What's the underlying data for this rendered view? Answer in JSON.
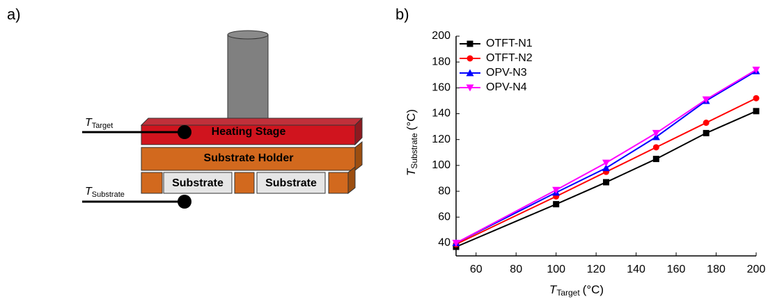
{
  "diagram": {
    "label": "a)",
    "heating_stage": "Heating Stage",
    "substrate_holder": "Substrate Holder",
    "substrates": [
      "Substrate",
      "Substrate"
    ],
    "sensors": [
      {
        "symbol": "T",
        "subscript": "Target"
      },
      {
        "symbol": "T",
        "subscript": "Substrate"
      }
    ]
  },
  "chart_data": {
    "type": "line",
    "panel_label": "b)",
    "x_label": {
      "symbol": "T",
      "subscript": "Target",
      "unit": "(°C)"
    },
    "y_label": {
      "symbol": "T",
      "subscript": "Substrate",
      "unit": "(°C)"
    },
    "x": [
      50,
      100,
      125,
      150,
      175,
      200
    ],
    "series": [
      {
        "name": "OTFT-N1",
        "color": "#000000",
        "marker": "square",
        "values": [
          37,
          70,
          87,
          105,
          125,
          142
        ]
      },
      {
        "name": "OTFT-N2",
        "color": "#ff0000",
        "marker": "circle",
        "values": [
          39,
          76,
          95,
          114,
          133,
          152
        ]
      },
      {
        "name": "OPV-N3",
        "color": "#0000ff",
        "marker": "triangle-up",
        "values": [
          40,
          79,
          98,
          122,
          150,
          173
        ]
      },
      {
        "name": "OPV-N4",
        "color": "#ff00ff",
        "marker": "triangle-down",
        "values": [
          40,
          81,
          102,
          125,
          151,
          174
        ]
      }
    ],
    "xlim": [
      50,
      200
    ],
    "xticks": [
      60,
      80,
      100,
      120,
      140,
      160,
      180,
      200
    ],
    "ylim": [
      30,
      200
    ],
    "yticks": [
      40,
      60,
      80,
      100,
      120,
      140,
      160,
      180,
      200
    ],
    "legend": "upper-left"
  }
}
